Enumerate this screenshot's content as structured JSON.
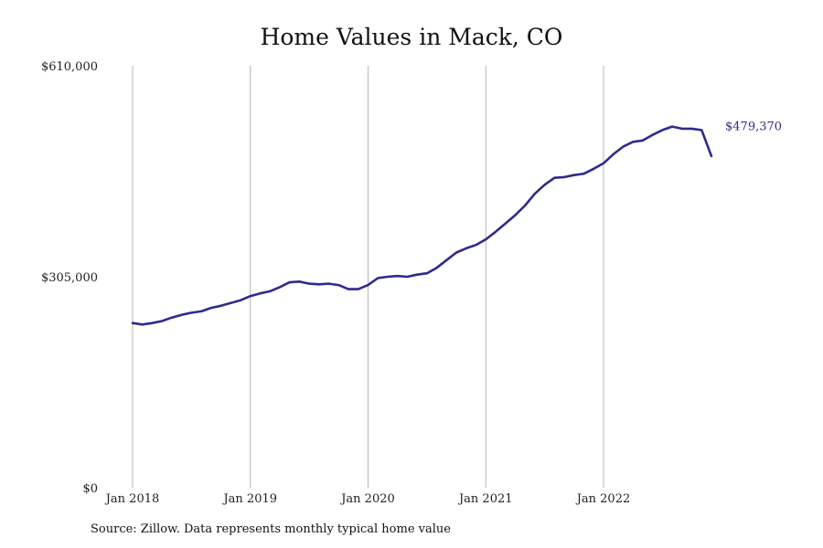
{
  "chart_data": {
    "type": "line",
    "title": "Home Values in Mack, CO",
    "source_note": "Source: Zillow. Data represents monthly typical home value",
    "xlabel": "",
    "ylabel": "",
    "ylim": [
      0,
      610000
    ],
    "yticks": [
      0,
      305000,
      610000
    ],
    "ytick_labels": [
      "$0",
      "$305,000",
      "$610,000"
    ],
    "xticks": [
      "2018-01",
      "2019-01",
      "2020-01",
      "2021-01",
      "2022-01"
    ],
    "xtick_labels": [
      "Jan 2018",
      "Jan 2019",
      "Jan 2020",
      "Jan 2021",
      "Jan 2022"
    ],
    "x_range": [
      "2018-01",
      "2022-12"
    ],
    "grid": "vertical lines at x ticks",
    "line_color": "#2e2b8c",
    "grid_color": "#b5b5b5",
    "end_label": "$479,370",
    "series": [
      {
        "x": [
          "2018-01",
          "2018-02",
          "2018-03",
          "2018-04",
          "2018-05",
          "2018-06",
          "2018-07",
          "2018-08",
          "2018-09",
          "2018-10",
          "2018-11",
          "2018-12",
          "2019-01",
          "2019-02",
          "2019-03",
          "2019-04",
          "2019-05",
          "2019-06",
          "2019-07",
          "2019-08",
          "2019-09",
          "2019-10",
          "2019-11",
          "2019-12",
          "2020-01",
          "2020-02",
          "2020-03",
          "2020-04",
          "2020-05",
          "2020-06",
          "2020-07",
          "2020-08",
          "2020-09",
          "2020-10",
          "2020-11",
          "2020-12",
          "2021-01",
          "2021-02",
          "2021-03",
          "2021-04",
          "2021-05",
          "2021-06",
          "2021-07",
          "2021-08",
          "2021-09",
          "2021-10",
          "2021-11",
          "2021-12",
          "2022-01",
          "2022-02",
          "2022-03",
          "2022-04",
          "2022-05",
          "2022-06",
          "2022-07",
          "2022-08",
          "2022-09",
          "2022-10",
          "2022-11",
          "2022-12"
        ],
        "values": [
          238000,
          236000,
          238000,
          241000,
          246000,
          250000,
          253000,
          255000,
          260000,
          263000,
          267000,
          271000,
          277000,
          281000,
          284000,
          290000,
          297000,
          298000,
          295000,
          294000,
          295000,
          293000,
          287000,
          287000,
          293000,
          303000,
          305000,
          306000,
          305000,
          308000,
          310000,
          318000,
          329000,
          340000,
          346000,
          351000,
          359000,
          370000,
          382000,
          394000,
          408000,
          425000,
          438000,
          448000,
          449000,
          452000,
          454000,
          461000,
          469000,
          482000,
          493000,
          500000,
          502000,
          510000,
          517000,
          522000,
          519000,
          519000,
          517000,
          479370
        ]
      }
    ]
  }
}
